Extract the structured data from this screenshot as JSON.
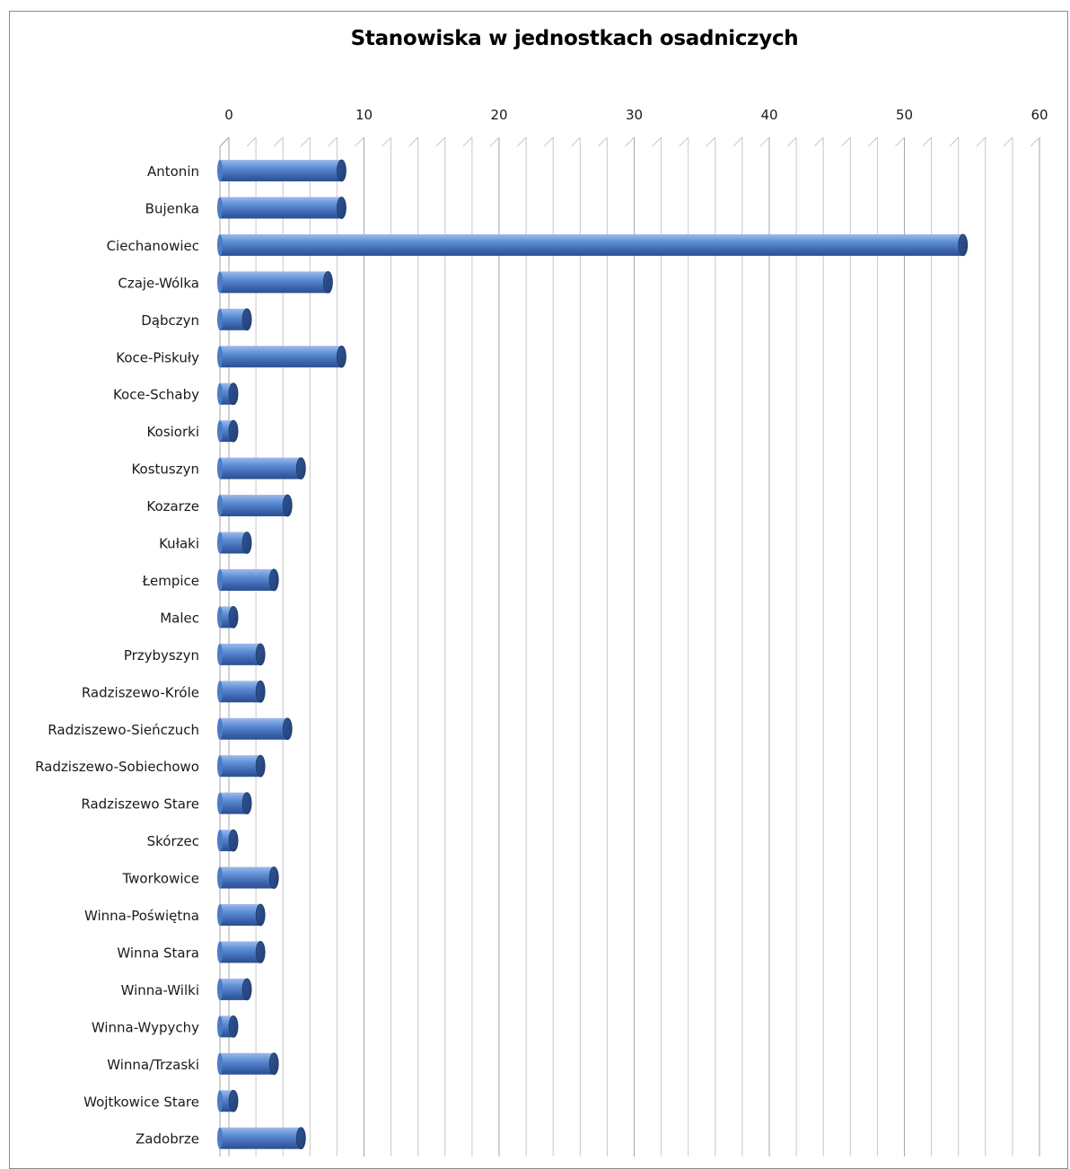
{
  "chart_data": {
    "type": "bar",
    "orientation": "horizontal",
    "title": "Stanowiska w jednostkach osadniczych",
    "xlabel": "",
    "ylabel": "",
    "xlim": [
      0,
      60
    ],
    "x_ticks": [
      "0",
      "10",
      "20",
      "30",
      "40",
      "50",
      "60"
    ],
    "grid": true,
    "legend": "none",
    "bar_color": "#4a78c2",
    "categories": [
      "Antonin",
      "Bujenka",
      "Ciechanowiec",
      "Czaje-Wólka",
      "Dąbczyn",
      "Koce-Piskuły",
      "Koce-Schaby",
      "Kosiorki",
      "Kostuszyn",
      "Kozarze",
      "Kułaki",
      "Łempice",
      "Malec",
      "Przybyszyn",
      "Radziszewo-Króle",
      "Radziszewo-Sieńczuch",
      "Radziszewo-Sobiechowo",
      "Radziszewo Stare",
      "Skórzec",
      "Tworkowice",
      "Winna-Poświętna",
      "Winna Stara",
      "Winna-Wilki",
      "Winna-Wypychy",
      "Winna/Trzaski",
      "Wojtkowice Stare",
      "Zadobrze"
    ],
    "values": [
      9,
      9,
      55,
      8,
      2,
      9,
      1,
      1,
      6,
      5,
      2,
      4,
      1,
      3,
      3,
      5,
      3,
      2,
      1,
      4,
      3,
      3,
      2,
      1,
      4,
      1,
      6
    ]
  }
}
